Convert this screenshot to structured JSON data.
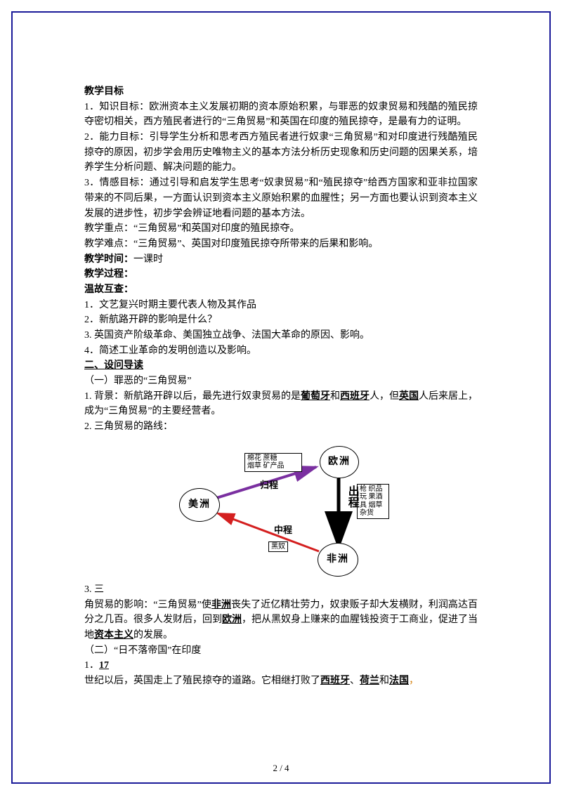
{
  "footer": "2 / 4",
  "headings": {
    "goal": "教学目标",
    "time": "教学时间：",
    "time_val": "一课时",
    "process": "教学过程：",
    "review": "温故互查：",
    "section2": "二、设问导读"
  },
  "goals": {
    "p1": "1．知识目标：欧洲资本主义发展初期的资本原始积累，与罪恶的奴隶贸易和残酷的殖民掠夺密切相关，西方殖民者进行的“三角贸易”和英国在印度的殖民掠夺，是最有力的证明。",
    "p2": "2．能力目标：引导学生分析和思考西方殖民者进行奴隶“三角贸易”和对印度进行残酷殖民掠夺的原因，初步学会用历史唯物主义的基本方法分析历史现象和历史问题的因果关系，培养学生分析问题、解决问题的能力。",
    "p3": "3．情感目标：通过引导和启发学生思考“奴隶贸易”和“殖民掠夺”给西方国家和亚非拉国家带来的不同后果，一方面认识到资本主义原始积累的血腥性；另一方面也要认识到资本主义发展的进步性，初步学会辨证地看问题的基本方法。",
    "key": "教学重点：“三角贸易”和英国对印度的殖民掠夺。",
    "hard": "教学难点：“三角贸易”、英国对印度殖民掠夺所带来的后果和影响。"
  },
  "review": {
    "q1": "1．文艺复兴时期主要代表人物及其作品",
    "q2": "2．新航路开辟的影响是什么？",
    "q3": "3. 英国资产阶级革命、美国独立战争、法国大革命的原因、影响。",
    "q4": "4．简述工业革命的发明创造以及影响。"
  },
  "s2": {
    "sub1": "（一）罪恶的“三角贸易”",
    "bg_pre": "1. 背景：新航路开辟以后，最先进行奴隶贸易的是",
    "bg_pt": "葡萄牙",
    "bg_mid1": "和",
    "bg_es": "西班牙",
    "bg_mid2": "人，但",
    "bg_uk": "英国",
    "bg_post": "人后来居上，成为“三角贸易”的主要经营者。",
    "route": "2. 三角贸易的路线：",
    "impact_lead": "3. 三",
    "impact_pre": "角贸易的影响：“三角贸易”使",
    "af": "非洲",
    "impact_mid1": "丧失了近亿精壮劳力，奴隶贩子却大发横财，利润高达百分之几百。很多人发财后，回到",
    "eu": "欧洲",
    "impact_mid2": "，把从黑奴身上赚来的血腥钱投资于工商业，促进了当地",
    "cap": "资本主义",
    "impact_post": "的发展。",
    "sub2": "（二）“日不落帝国”在印度",
    "c17_lead": "1．",
    "c17": "17",
    "india_pre": "世纪以后，英国走上了殖民掠夺的道路。它相继打败了",
    "es2": "西班牙",
    "sep1": "、",
    "nl": "荷兰",
    "sep2": "和",
    "fr": "法国",
    "india_post": "，"
  },
  "diagram": {
    "nodes": {
      "eu": "欧洲",
      "am": "美洲",
      "af": "非洲"
    },
    "legs": {
      "out": "出程",
      "mid": "中程",
      "ret": "归程"
    },
    "box_ret": "棉花  蔗糖\n烟草  矿产品",
    "box_out": "枪 织品\n玩 果酒\n具 烟草\n   杂货",
    "box_mid": "黑奴",
    "colors": {
      "ret": "#7a2fa0",
      "mid": "#d41f1f",
      "out": "#000000",
      "node_border": "#000000"
    }
  }
}
